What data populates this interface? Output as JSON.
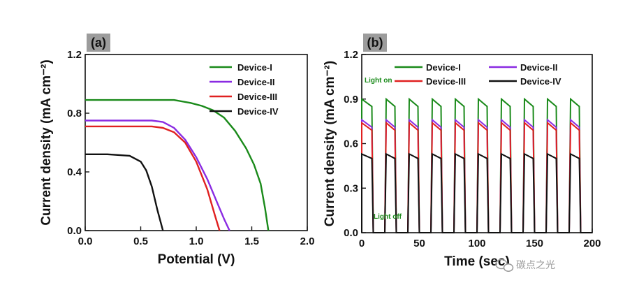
{
  "watermark": {
    "text": "碳点之光",
    "icon": "wechat-icon"
  },
  "colors": {
    "Device-I": "#1a8a1a",
    "Device-II": "#8a2be2",
    "Device-III": "#e02020",
    "Device-IV": "#111111",
    "annotation": "#1a8a1a"
  },
  "chart_data": [
    {
      "panel": "(a)",
      "type": "line",
      "xlabel": "Potential (V)",
      "ylabel": "Current density (mA cm⁻²)",
      "xlim": [
        0.0,
        2.0
      ],
      "ylim": [
        0.0,
        1.2
      ],
      "xticks": [
        "0.0",
        "0.5",
        "1.0",
        "1.5",
        "2.0"
      ],
      "yticks": [
        "0.0",
        "0.4",
        "0.8",
        "1.2"
      ],
      "legend_position": "top-right",
      "series": [
        {
          "name": "Device-I",
          "x": [
            0,
            0.2,
            0.4,
            0.6,
            0.8,
            0.95,
            1.05,
            1.15,
            1.25,
            1.35,
            1.45,
            1.52,
            1.58,
            1.62,
            1.65
          ],
          "y": [
            0.89,
            0.89,
            0.89,
            0.89,
            0.89,
            0.87,
            0.85,
            0.82,
            0.77,
            0.68,
            0.56,
            0.45,
            0.32,
            0.15,
            0.0
          ]
        },
        {
          "name": "Device-II",
          "x": [
            0,
            0.2,
            0.4,
            0.6,
            0.7,
            0.8,
            0.9,
            1.0,
            1.1,
            1.2,
            1.25,
            1.3
          ],
          "y": [
            0.75,
            0.75,
            0.75,
            0.75,
            0.74,
            0.7,
            0.62,
            0.5,
            0.35,
            0.17,
            0.08,
            0.0
          ]
        },
        {
          "name": "Device-III",
          "x": [
            0,
            0.2,
            0.4,
            0.6,
            0.7,
            0.8,
            0.9,
            1.0,
            1.1,
            1.17,
            1.21
          ],
          "y": [
            0.71,
            0.71,
            0.71,
            0.71,
            0.7,
            0.67,
            0.6,
            0.47,
            0.28,
            0.1,
            0.0
          ]
        },
        {
          "name": "Device-IV",
          "x": [
            0,
            0.2,
            0.4,
            0.5,
            0.55,
            0.6,
            0.65,
            0.7
          ],
          "y": [
            0.52,
            0.52,
            0.51,
            0.47,
            0.41,
            0.3,
            0.14,
            0.0
          ]
        }
      ]
    },
    {
      "panel": "(b)",
      "type": "line",
      "xlabel": "Time (sec)",
      "ylabel": "Current density (mA cm⁻²)",
      "xlim": [
        0,
        200
      ],
      "ylim": [
        0.0,
        1.2
      ],
      "xticks": [
        "0",
        "50",
        "100",
        "150",
        "200"
      ],
      "yticks": [
        "0.0",
        "0.3",
        "0.6",
        "0.9",
        "1.2"
      ],
      "legend_position": "top",
      "annotations": [
        "Light on",
        "Light off"
      ],
      "light_on_starts": [
        0,
        20,
        40,
        60,
        80,
        100,
        120,
        140,
        160,
        180
      ],
      "on_duration": 10,
      "series": [
        {
          "name": "Device-I",
          "peak": 0.9,
          "plateau": 0.85
        },
        {
          "name": "Device-II",
          "peak": 0.76,
          "plateau": 0.71
        },
        {
          "name": "Device-III",
          "peak": 0.74,
          "plateau": 0.69
        },
        {
          "name": "Device-IV",
          "peak": 0.53,
          "plateau": 0.5
        }
      ]
    }
  ]
}
